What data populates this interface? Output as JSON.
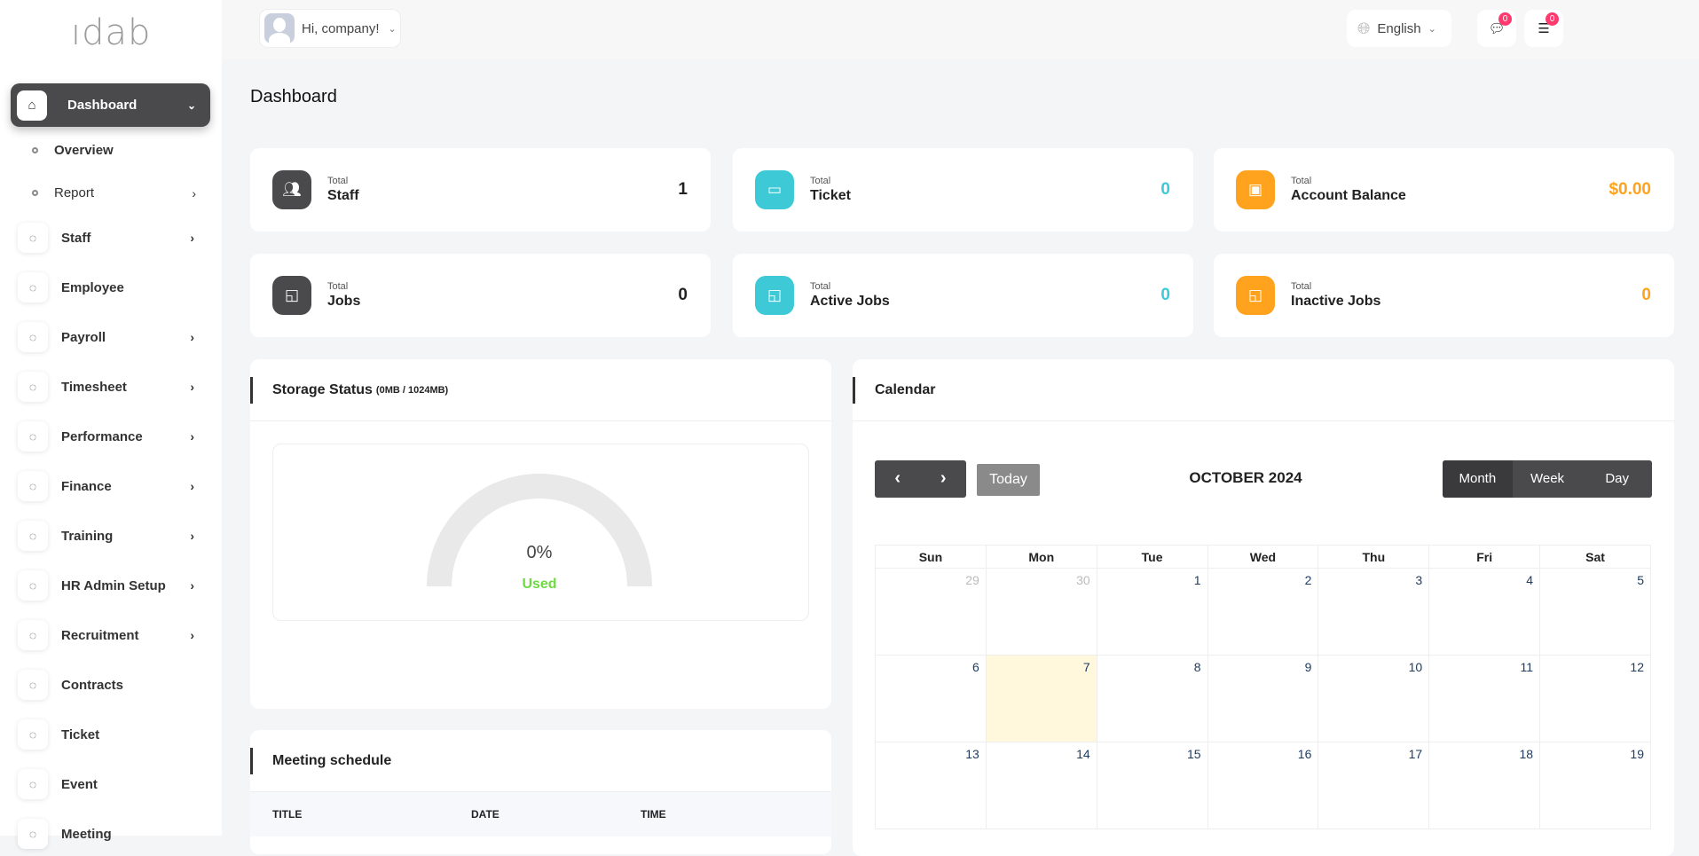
{
  "app": {
    "logo": "idab"
  },
  "sidebar": {
    "active": {
      "label": "Dashboard",
      "icon": "home-icon"
    },
    "subitems": [
      {
        "label": "Overview",
        "has_arrow": false
      },
      {
        "label": "Report",
        "has_arrow": true
      }
    ],
    "items": [
      {
        "label": "Staff",
        "icon": "users-icon",
        "has_arrow": true
      },
      {
        "label": "Employee",
        "icon": "user-icon",
        "has_arrow": false
      },
      {
        "label": "Payroll",
        "icon": "receipt-icon",
        "has_arrow": true
      },
      {
        "label": "Timesheet",
        "icon": "clock-icon",
        "has_arrow": true
      },
      {
        "label": "Performance",
        "icon": "performance-icon",
        "has_arrow": true
      },
      {
        "label": "Finance",
        "icon": "wallet-icon",
        "has_arrow": true
      },
      {
        "label": "Training",
        "icon": "graduation-cap-icon",
        "has_arrow": true
      },
      {
        "label": "HR Admin Setup",
        "icon": "user-plus-icon",
        "has_arrow": true
      },
      {
        "label": "Recruitment",
        "icon": "clipboard-icon",
        "has_arrow": true
      },
      {
        "label": "Contracts",
        "icon": "file-icon",
        "has_arrow": false
      },
      {
        "label": "Ticket",
        "icon": "ticket-icon",
        "has_arrow": false
      },
      {
        "label": "Event",
        "icon": "calendar-icon",
        "has_arrow": false
      },
      {
        "label": "Meeting",
        "icon": "calendar-icon",
        "has_arrow": false
      }
    ]
  },
  "header": {
    "greeting": "Hi, company!",
    "messages_count": "0",
    "notifications_count": "0",
    "language": "English"
  },
  "page": {
    "title": "Dashboard"
  },
  "stats": [
    {
      "small": "Total",
      "name": "Staff",
      "value": "1",
      "color": "#4a4a4c",
      "value_color": "#222222",
      "icon": "users-icon"
    },
    {
      "small": "Total",
      "name": "Ticket",
      "value": "0",
      "color": "#3ec9d6",
      "value_color": "#3ec9d6",
      "icon": "ticket-icon"
    },
    {
      "small": "Total",
      "name": "Account Balance",
      "value": "$0.00",
      "color": "#ffa21d",
      "value_color": "#ffa21d",
      "icon": "wallet-icon"
    },
    {
      "small": "Total",
      "name": "Jobs",
      "value": "0",
      "color": "#4a4a4c",
      "value_color": "#222222",
      "icon": "cast-icon"
    },
    {
      "small": "Total",
      "name": "Active Jobs",
      "value": "0",
      "color": "#3ec9d6",
      "value_color": "#3ec9d6",
      "icon": "cast-icon"
    },
    {
      "small": "Total",
      "name": "Inactive Jobs",
      "value": "0",
      "color": "#ffa21d",
      "value_color": "#ffa21d",
      "icon": "cast-icon"
    }
  ],
  "storage": {
    "title": "Storage Status",
    "detail": "(0MB / 1024MB)",
    "percent_label": "0%",
    "used_label": "Used",
    "used_percent": 0,
    "used_color": "#6fd943"
  },
  "meeting": {
    "title": "Meeting schedule",
    "columns": [
      "TITLE",
      "DATE",
      "TIME"
    ]
  },
  "calendar": {
    "title": "Calendar",
    "month": "OCTOBER 2024",
    "today_label": "Today",
    "views": [
      "Month",
      "Week",
      "Day"
    ],
    "active_view": "Month",
    "weekdays": [
      "Sun",
      "Mon",
      "Tue",
      "Wed",
      "Thu",
      "Fri",
      "Sat"
    ],
    "weeks": [
      [
        "29",
        "30",
        "1",
        "2",
        "3",
        "4",
        "5"
      ],
      [
        "6",
        "7",
        "8",
        "9",
        "10",
        "11",
        "12"
      ],
      [
        "13",
        "14",
        "15",
        "16",
        "17",
        "18",
        "19"
      ]
    ],
    "today": "7"
  }
}
